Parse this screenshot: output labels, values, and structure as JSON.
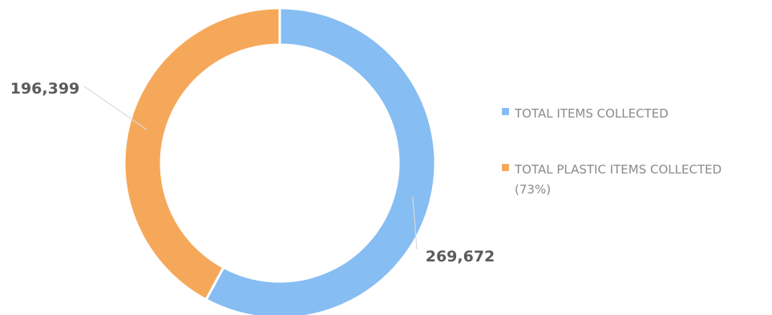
{
  "chart_data": {
    "type": "pie",
    "categories": [
      "TOTAL ITEMS COLLECTED",
      "TOTAL PLASTIC ITEMS COLLECTED (73%)"
    ],
    "values": [
      269672,
      196399
    ],
    "data_labels": [
      "269,672",
      "196,399"
    ],
    "colors": [
      "#86bdf2",
      "#f6a85a"
    ],
    "legend_position": "right",
    "legend": [
      {
        "lines": [
          "TOTAL ITEMS COLLECTED"
        ]
      },
      {
        "lines": [
          "TOTAL PLASTIC ITEMS COLLECTED",
          "(73%)"
        ]
      }
    ]
  }
}
